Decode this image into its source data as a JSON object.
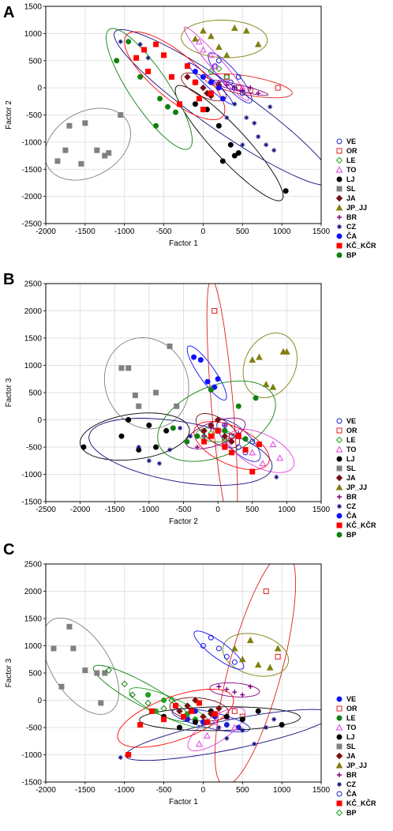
{
  "figure": {
    "title": ""
  },
  "chart_data": [
    {
      "panel": "A",
      "type": "scatter",
      "xlabel": "Factor 1",
      "ylabel": "Factor 2",
      "xlim": [
        -2000,
        1500
      ],
      "ylim": [
        -2500,
        1500
      ],
      "xticks": [
        "-2000",
        "-1500",
        "-1000",
        "-500",
        "0",
        "500",
        "1000",
        "1500"
      ],
      "yticks": [
        "1500",
        "1000",
        "500",
        "0",
        "-500",
        "-1000",
        "-1500",
        "-2000",
        "-2500"
      ],
      "grid": true,
      "legend_position": "right",
      "legend": [
        "VE",
        "OR",
        "LE",
        "TO",
        "LJ",
        "SL",
        "JA",
        "JP_JJ",
        "BR",
        "CZ",
        "ČA",
        "KČ_KČR",
        "BP"
      ],
      "series": [
        {
          "name": "VE",
          "x": [
            150,
            200,
            350,
            400,
            450,
            500
          ],
          "y": [
            400,
            500,
            100,
            0,
            200,
            -100
          ]
        },
        {
          "name": "OR",
          "x": [
            300,
            450,
            600,
            950
          ],
          "y": [
            200,
            0,
            -50,
            0
          ]
        },
        {
          "name": "LE",
          "x": [
            100,
            200,
            300
          ],
          "y": [
            300,
            350,
            200
          ]
        },
        {
          "name": "TO",
          "x": [
            -50,
            0,
            100,
            150,
            300,
            500
          ],
          "y": [
            850,
            700,
            600,
            400,
            100,
            0
          ]
        },
        {
          "name": "LJ",
          "x": [
            -100,
            50,
            200,
            250,
            350,
            400,
            450,
            1050
          ],
          "y": [
            -300,
            -400,
            -700,
            -1350,
            -1050,
            -1250,
            -1200,
            -1900
          ]
        },
        {
          "name": "SL",
          "x": [
            -1850,
            -1750,
            -1700,
            -1550,
            -1500,
            -1350,
            -1250,
            -1200,
            -1050
          ],
          "y": [
            -1350,
            -1150,
            -700,
            -1400,
            -650,
            -1150,
            -1250,
            -1200,
            -500
          ]
        },
        {
          "name": "JA",
          "x": [
            -200,
            -100,
            0,
            50,
            100,
            200
          ],
          "y": [
            200,
            100,
            0,
            -100,
            -150,
            50
          ]
        },
        {
          "name": "JP_JJ",
          "x": [
            -100,
            0,
            100,
            200,
            300,
            400,
            550,
            700
          ],
          "y": [
            900,
            1050,
            950,
            750,
            600,
            1100,
            1050,
            800
          ]
        },
        {
          "name": "BR",
          "x": [
            200,
            300,
            400,
            500,
            600,
            700
          ],
          "y": [
            100,
            50,
            0,
            -50,
            0,
            -100
          ]
        },
        {
          "name": "CZ",
          "x": [
            -800,
            -700,
            -1050,
            300,
            400,
            500,
            550,
            650,
            700,
            800,
            850,
            900
          ],
          "y": [
            800,
            550,
            850,
            -550,
            -300,
            -1050,
            -550,
            -650,
            -900,
            -1050,
            -350,
            -1150
          ]
        },
        {
          "name": "ČA",
          "x": [
            -100,
            0,
            100,
            200,
            250
          ],
          "y": [
            300,
            200,
            100,
            0,
            -200
          ]
        },
        {
          "name": "KČ_KČR",
          "x": [
            -850,
            -750,
            -700,
            -600,
            -500,
            -400,
            -300,
            -200,
            -100,
            -50,
            0,
            100
          ],
          "y": [
            550,
            700,
            300,
            800,
            600,
            200,
            -300,
            400,
            100,
            -200,
            -400,
            -100
          ]
        },
        {
          "name": "BP",
          "x": [
            -1100,
            -950,
            -800,
            -600,
            -550,
            -450,
            -350
          ],
          "y": [
            500,
            850,
            200,
            -700,
            -200,
            -350,
            -450
          ]
        }
      ]
    },
    {
      "panel": "B",
      "type": "scatter",
      "xlabel": "Factor 2",
      "ylabel": "Factor 3",
      "xlim": [
        -2500,
        1500
      ],
      "ylim": [
        -1500,
        2500
      ],
      "xticks": [
        "-2500",
        "-2000",
        "-1500",
        "-1000",
        "-500",
        "0",
        "500",
        "1000",
        "1500"
      ],
      "yticks": [
        "2500",
        "2000",
        "1500",
        "1000",
        "500",
        "0",
        "-500",
        "-1000",
        "-1500"
      ],
      "grid": true,
      "legend_position": "right",
      "legend": [
        "VE",
        "OR",
        "LE",
        "TO",
        "LJ",
        "SL",
        "JA",
        "JP_JJ",
        "BR",
        "CZ",
        "ČA",
        "KČ_KČR",
        "BP"
      ],
      "series": [
        {
          "name": "VE",
          "x": [
            100,
            200,
            300,
            400,
            500
          ],
          "y": [
            -100,
            -300,
            -500,
            -600,
            -400
          ]
        },
        {
          "name": "OR",
          "x": [
            -50,
            0,
            100,
            200
          ],
          "y": [
            2000,
            -200,
            -400,
            -300
          ]
        },
        {
          "name": "LE",
          "x": [
            -200,
            -100,
            0,
            100
          ],
          "y": [
            -300,
            -250,
            -200,
            -350
          ]
        },
        {
          "name": "TO",
          "x": [
            300,
            500,
            650,
            800,
            900
          ],
          "y": [
            -300,
            -600,
            -800,
            -450,
            -700
          ]
        },
        {
          "name": "LJ",
          "x": [
            -1950,
            -1400,
            -1300,
            -1150,
            -1000,
            -900,
            -750
          ],
          "y": [
            -500,
            -300,
            0,
            -550,
            -100,
            -500,
            -200
          ]
        },
        {
          "name": "SL",
          "x": [
            -1400,
            -1300,
            -1200,
            -1150,
            -900,
            -700,
            -600
          ],
          "y": [
            950,
            950,
            450,
            250,
            500,
            1350,
            250
          ]
        },
        {
          "name": "JA",
          "x": [
            -200,
            -100,
            0,
            100,
            200
          ],
          "y": [
            -200,
            -100,
            0,
            -300,
            -400
          ]
        },
        {
          "name": "JP_JJ",
          "x": [
            500,
            600,
            700,
            800,
            950,
            1000
          ],
          "y": [
            1100,
            1150,
            650,
            600,
            1250,
            1250
          ]
        },
        {
          "name": "BR",
          "x": [
            -300,
            -200,
            -100,
            0,
            100,
            300
          ],
          "y": [
            -500,
            -300,
            -150,
            -200,
            -100,
            -250
          ]
        },
        {
          "name": "CZ",
          "x": [
            -1150,
            -1000,
            -850,
            -700,
            -550,
            -400,
            850
          ],
          "y": [
            -500,
            -750,
            -800,
            -550,
            -150,
            -300,
            -1050
          ]
        },
        {
          "name": "ČA",
          "x": [
            -350,
            -250,
            -150,
            -50,
            0
          ],
          "y": [
            1150,
            1100,
            700,
            600,
            750
          ]
        },
        {
          "name": "KČ_KČR",
          "x": [
            -200,
            -100,
            0,
            100,
            200,
            300,
            400,
            500,
            600
          ],
          "y": [
            -400,
            -300,
            -200,
            -500,
            -600,
            -300,
            -550,
            -950,
            -450
          ]
        },
        {
          "name": "BP",
          "x": [
            -650,
            -450,
            -300,
            -100,
            100,
            300,
            400,
            550
          ],
          "y": [
            -150,
            -400,
            -300,
            550,
            -200,
            250,
            -350,
            400
          ]
        }
      ]
    },
    {
      "panel": "C",
      "type": "scatter",
      "xlabel": "Factor 1",
      "ylabel": "Factor 3",
      "xlim": [
        -2000,
        1500
      ],
      "ylim": [
        -1500,
        2500
      ],
      "xticks": [
        "-2000",
        "-1500",
        "-1000",
        "-500",
        "0",
        "500",
        "1000",
        "1500"
      ],
      "yticks": [
        "2500",
        "2000",
        "1500",
        "1000",
        "500",
        "0",
        "-500",
        "-1000",
        "-1500"
      ],
      "grid": true,
      "legend_position": "right",
      "legend": [
        "VE",
        "OR",
        "LE",
        "TO",
        "LJ",
        "SL",
        "JA",
        "JP_JJ",
        "BR",
        "CZ",
        "ČA",
        "KČ_KČR",
        "BP"
      ],
      "series": [
        {
          "name": "VE",
          "x": [
            -200,
            -100,
            0,
            150,
            300,
            450
          ],
          "y": [
            -350,
            -200,
            -400,
            -300,
            -450,
            -500
          ]
        },
        {
          "name": "OR",
          "x": [
            800,
            950,
            400,
            500
          ],
          "y": [
            2000,
            800,
            -200,
            -300
          ]
        },
        {
          "name": "LE",
          "x": [
            -700,
            -600,
            -500,
            -200,
            -100
          ],
          "y": [
            100,
            -200,
            0,
            -250,
            -350
          ]
        },
        {
          "name": "TO",
          "x": [
            -50,
            50,
            150,
            300,
            400
          ],
          "y": [
            -800,
            -650,
            -400,
            -300,
            -500
          ]
        },
        {
          "name": "LJ",
          "x": [
            -500,
            -300,
            -100,
            100,
            300,
            500,
            700,
            1000
          ],
          "y": [
            -300,
            -500,
            -400,
            -200,
            -300,
            -350,
            -200,
            -450
          ]
        },
        {
          "name": "SL",
          "x": [
            -1900,
            -1800,
            -1700,
            -1650,
            -1500,
            -1350,
            -1300,
            -1250
          ],
          "y": [
            950,
            250,
            1350,
            950,
            550,
            500,
            -50,
            500
          ]
        },
        {
          "name": "JA",
          "x": [
            -300,
            -200,
            -100,
            0,
            100,
            200
          ],
          "y": [
            -200,
            -100,
            0,
            -300,
            -250,
            -150
          ]
        },
        {
          "name": "JP_JJ",
          "x": [
            400,
            500,
            600,
            700,
            850,
            950
          ],
          "y": [
            950,
            750,
            1100,
            650,
            600,
            950
          ]
        },
        {
          "name": "BR",
          "x": [
            200,
            300,
            400,
            500,
            600
          ],
          "y": [
            250,
            200,
            150,
            100,
            250
          ]
        },
        {
          "name": "CZ",
          "x": [
            -1050,
            200,
            300,
            500,
            650,
            800,
            900
          ],
          "y": [
            -1050,
            -500,
            -700,
            -550,
            -800,
            -500,
            -350
          ]
        },
        {
          "name": "ČA",
          "x": [
            0,
            100,
            200,
            300,
            400
          ],
          "y": [
            1000,
            1150,
            950,
            800,
            700
          ]
        },
        {
          "name": "KČ_KČR",
          "x": [
            -950,
            -800,
            -650,
            -500,
            -350,
            -250,
            -150,
            -50,
            50,
            150
          ],
          "y": [
            -1000,
            -450,
            -200,
            -350,
            -100,
            -300,
            -200,
            -50,
            -400,
            -250
          ]
        },
        {
          "name": "BP",
          "x": [
            -1200,
            -1000,
            -900,
            -700,
            -500,
            -400
          ],
          "y": [
            550,
            300,
            100,
            -50,
            -150,
            0
          ]
        }
      ]
    }
  ],
  "colors": {
    "VE": "#1f1fd0",
    "OR": "#e02020",
    "LE": "#20a020",
    "TO": "#e040e0",
    "LJ": "#000000",
    "SL": "#808080",
    "JA": "#7a1010",
    "JP_JJ": "#808010",
    "BR": "#800080",
    "CZ": "#101080",
    "ČA": "#1010ff",
    "KČ_KČR": "#ff0000",
    "BP": "#108010"
  },
  "markers": {
    "A": {
      "VE": "circle-open",
      "OR": "square-open",
      "LE": "diamond-open",
      "TO": "triangle-open",
      "LJ": "circle",
      "SL": "square",
      "JA": "diamond",
      "JP_JJ": "triangle",
      "BR": "plus",
      "CZ": "asterisk",
      "ČA": "circle",
      "KČ_KČR": "square",
      "BP": "circle"
    },
    "B": {
      "VE": "circle-open",
      "OR": "square-open",
      "LE": "diamond-open",
      "TO": "triangle-open",
      "LJ": "circle",
      "SL": "square",
      "JA": "diamond",
      "JP_JJ": "triangle",
      "BR": "plus",
      "CZ": "asterisk",
      "ČA": "circle",
      "KČ_KČR": "square",
      "BP": "circle"
    },
    "C": {
      "VE": "circle",
      "OR": "square-open",
      "LE": "circle",
      "TO": "triangle-open",
      "LJ": "circle",
      "SL": "square",
      "JA": "diamond",
      "JP_JJ": "triangle",
      "BR": "plus",
      "CZ": "asterisk",
      "ČA": "circle-open",
      "KČ_KČR": "square",
      "BP": "diamond-open"
    }
  },
  "legend_colors": {
    "C": {
      "VE": "#1010ff",
      "OR": "#e02020",
      "LE": "#108010",
      "TO": "#e040e0",
      "LJ": "#000000",
      "SL": "#808080",
      "JA": "#7a1010",
      "JP_JJ": "#808010",
      "BR": "#800080",
      "CZ": "#101080",
      "ČA": "#1f1fd0",
      "KČ_KČR": "#ff0000",
      "BP": "#20a020"
    }
  },
  "ellipse_colors": [
    "#1f1fd0",
    "#e02020",
    "#20a020",
    "#e040e0",
    "#000000",
    "#808080",
    "#808010",
    "#101080",
    "#1010ff",
    "#108010"
  ]
}
